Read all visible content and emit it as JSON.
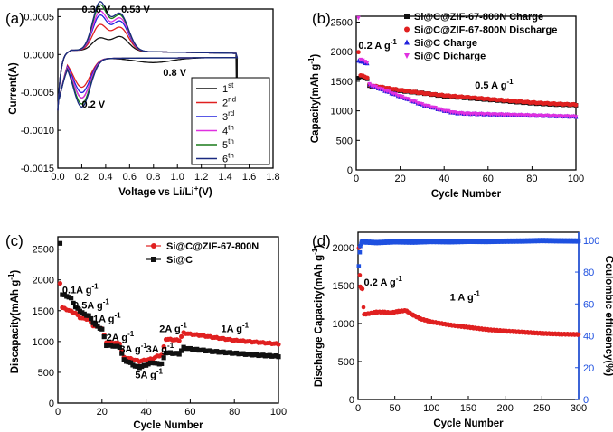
{
  "figure": {
    "panels": [
      "(a)",
      "(b)",
      "(c)",
      "(d)"
    ]
  },
  "chart_data": [
    {
      "id": "a",
      "type": "line",
      "panel_label": "(a)",
      "xlabel": "Voltage vs Li/Li",
      "xlabel_sup": "+",
      "xlabel_suffix": "(V)",
      "ylabel": "Current(A)",
      "xlim": [
        0,
        1.8
      ],
      "ylim": [
        -0.0015,
        0.0006
      ],
      "x_ticks": [
        "0.0",
        "0.2",
        "0.4",
        "0.6",
        "0.8",
        "1.0",
        "1.2",
        "1.4",
        "1.6",
        "1.8"
      ],
      "x_tick_values": [
        0,
        0.2,
        0.4,
        0.6,
        0.8,
        1.0,
        1.2,
        1.4,
        1.6,
        1.8
      ],
      "y_ticks": [
        "0.0005",
        "0.0000",
        "-0.0005",
        "-0.0010",
        "-0.0015"
      ],
      "y_tick_values": [
        0.0005,
        0.0,
        -0.0005,
        -0.001,
        -0.0015
      ],
      "annotations": [
        {
          "text": "0.36 V",
          "x": 0.2,
          "y": 0.00055
        },
        {
          "text": "0.53 V",
          "x": 0.53,
          "y": 0.00055
        },
        {
          "text": "0.8 V",
          "x": 0.88,
          "y": -0.00028
        },
        {
          "text": "0.2 V",
          "x": 0.2,
          "y": -0.0007
        }
      ],
      "legend": [
        {
          "main": "1",
          "sup": "st"
        },
        {
          "main": "2",
          "sup": "nd"
        },
        {
          "main": "3",
          "sup": "rd"
        },
        {
          "main": "4",
          "sup": "th"
        },
        {
          "main": "5",
          "sup": "th"
        },
        {
          "main": "6",
          "sup": "th"
        }
      ],
      "series": [
        {
          "name": "1st",
          "color": "#111111",
          "p1": 0.00016,
          "p2": 0.00019,
          "r": -0.00062
        },
        {
          "name": "2nd",
          "color": "#e02020",
          "p1": 0.00033,
          "p2": 0.00031,
          "r": -0.00048
        },
        {
          "name": "3rd",
          "color": "#2222dd",
          "p1": 0.00045,
          "p2": 0.00039,
          "r": -0.00055
        },
        {
          "name": "4th",
          "color": "#e030e0",
          "p1": 0.0005,
          "p2": 0.00043,
          "r": -0.00062
        },
        {
          "name": "5th",
          "color": "#1a7a1a",
          "p1": 0.00058,
          "p2": 0.00047,
          "r": -0.0007
        },
        {
          "name": "6th",
          "color": "#1a2a80",
          "p1": 0.00062,
          "p2": 0.00049,
          "r": -0.00074
        }
      ]
    },
    {
      "id": "b",
      "type": "scatter",
      "panel_label": "(b)",
      "xlabel": "Cycle Number",
      "ylabel": "Capacity(mAh g",
      "ylabel_sup": "-1",
      "ylabel_suffix": ")",
      "xlim": [
        0,
        100
      ],
      "ylim": [
        0,
        2600
      ],
      "x_ticks": [
        "0",
        "20",
        "40",
        "60",
        "80",
        "100"
      ],
      "x_tick_values": [
        0,
        20,
        40,
        60,
        80,
        100
      ],
      "y_ticks": [
        "0",
        "500",
        "1000",
        "1500",
        "2000",
        "2500"
      ],
      "y_tick_values": [
        0,
        500,
        1000,
        1500,
        2000,
        2500
      ],
      "annotations": [
        {
          "text": "0.2 A g",
          "sup": "-1",
          "x": 1,
          "y": 2050
        },
        {
          "text": "0.5 A g",
          "sup": "-1",
          "x": 54,
          "y": 1380
        }
      ],
      "legend": [
        {
          "text": "Si@C@ZIF-67-800N Charge",
          "color": "#111111",
          "marker": "square"
        },
        {
          "text": "Si@C@ZIF-67-800N Discharge",
          "color": "#e02020",
          "marker": "circle"
        },
        {
          "text": "Si@C Charge",
          "color": "#2222dd",
          "marker": "triangle"
        },
        {
          "text": "Si@C Dicharge",
          "color": "#e030e0",
          "marker": "triangle-down"
        }
      ],
      "series": [
        {
          "name": "Si@C@ZIF-67-800N Charge",
          "color": "#111111",
          "marker": "square",
          "points": [
            [
              1,
              1560
            ],
            [
              2,
              1580
            ],
            [
              3,
              1570
            ],
            [
              4,
              1560
            ],
            [
              5,
              1540
            ],
            [
              6,
              1420
            ],
            [
              10,
              1400
            ],
            [
              20,
              1340
            ],
            [
              30,
              1300
            ],
            [
              40,
              1250
            ],
            [
              50,
              1220
            ],
            [
              60,
              1190
            ],
            [
              70,
              1160
            ],
            [
              80,
              1130
            ],
            [
              90,
              1110
            ],
            [
              100,
              1100
            ]
          ]
        },
        {
          "name": "Si@C@ZIF-67-800N Discharge",
          "color": "#e02020",
          "marker": "circle",
          "points": [
            [
              1,
              2000
            ],
            [
              2,
              1600
            ],
            [
              3,
              1590
            ],
            [
              4,
              1580
            ],
            [
              5,
              1560
            ],
            [
              6,
              1430
            ],
            [
              10,
              1410
            ],
            [
              20,
              1350
            ],
            [
              30,
              1300
            ],
            [
              40,
              1260
            ],
            [
              50,
              1230
            ],
            [
              60,
              1200
            ],
            [
              70,
              1170
            ],
            [
              80,
              1140
            ],
            [
              90,
              1120
            ],
            [
              100,
              1105
            ]
          ]
        },
        {
          "name": "Si@C Charge",
          "color": "#2222dd",
          "marker": "triangle",
          "points": [
            [
              1,
              1850
            ],
            [
              2,
              1830
            ],
            [
              3,
              1820
            ],
            [
              4,
              1810
            ],
            [
              5,
              1800
            ],
            [
              6,
              1440
            ],
            [
              10,
              1380
            ],
            [
              20,
              1240
            ],
            [
              30,
              1100
            ],
            [
              40,
              1000
            ],
            [
              45,
              960
            ],
            [
              50,
              950
            ],
            [
              60,
              940
            ],
            [
              70,
              930
            ],
            [
              80,
              920
            ],
            [
              90,
              910
            ],
            [
              100,
              900
            ]
          ]
        },
        {
          "name": "Si@C Dicharge",
          "color": "#e030e0",
          "marker": "triangle-down",
          "points": [
            [
              1,
              2580
            ],
            [
              2,
              1870
            ],
            [
              3,
              1850
            ],
            [
              4,
              1840
            ],
            [
              5,
              1820
            ],
            [
              6,
              1450
            ],
            [
              10,
              1390
            ],
            [
              20,
              1250
            ],
            [
              30,
              1110
            ],
            [
              40,
              1010
            ],
            [
              45,
              970
            ],
            [
              50,
              955
            ],
            [
              60,
              945
            ],
            [
              70,
              935
            ],
            [
              80,
              925
            ],
            [
              90,
              915
            ],
            [
              100,
              905
            ]
          ]
        }
      ]
    },
    {
      "id": "c",
      "type": "scatter",
      "panel_label": "(c)",
      "xlabel": "Cycle Number",
      "ylabel": "Discapacity(mAh g",
      "ylabel_sup": "-1",
      "ylabel_suffix": ")",
      "xlim": [
        0,
        100
      ],
      "ylim": [
        0,
        2700
      ],
      "x_ticks": [
        "0",
        "20",
        "40",
        "60",
        "80",
        "100"
      ],
      "x_tick_values": [
        0,
        20,
        40,
        60,
        80,
        100
      ],
      "y_ticks": [
        "0",
        "500",
        "1000",
        "1500",
        "2000",
        "2500"
      ],
      "y_tick_values": [
        0,
        500,
        1000,
        1500,
        2000,
        2500
      ],
      "annotations": [
        {
          "text": "0.1A g",
          "sup": "-1",
          "x": 2,
          "y": 1780
        },
        {
          "text": "0.5A g",
          "sup": "-1",
          "x": 7,
          "y": 1530
        },
        {
          "text": "1A g",
          "sup": "-1",
          "x": 16,
          "y": 1310
        },
        {
          "text": "2A g",
          "sup": "-1",
          "x": 22,
          "y": 1010
        },
        {
          "text": "3A g",
          "sup": "-1",
          "x": 28,
          "y": 820
        },
        {
          "text": "3A g",
          "sup": "-1",
          "x": 40,
          "y": 820
        },
        {
          "text": "5A g",
          "sup": "-1",
          "x": 35,
          "y": 400
        },
        {
          "text": "2A g",
          "sup": "-1",
          "x": 46,
          "y": 1150
        },
        {
          "text": "1A g",
          "sup": "-1",
          "x": 74,
          "y": 1150
        }
      ],
      "legend": [
        {
          "text": "Si@C@ZIF-67-800N",
          "color": "#e02020",
          "marker": "circle"
        },
        {
          "text": "Si@C",
          "color": "#111111",
          "marker": "square"
        }
      ],
      "series": [
        {
          "name": "Si@C@ZIF-67-800N",
          "color": "#e02020",
          "marker": "circle",
          "points": [
            [
              1,
              1950
            ],
            [
              2,
              1550
            ],
            [
              4,
              1520
            ],
            [
              6,
              1490
            ],
            [
              8,
              1460
            ],
            [
              10,
              1390
            ],
            [
              12,
              1370
            ],
            [
              14,
              1360
            ],
            [
              16,
              1260
            ],
            [
              18,
              1240
            ],
            [
              20,
              1210
            ],
            [
              22,
              990
            ],
            [
              25,
              980
            ],
            [
              28,
              970
            ],
            [
              30,
              740
            ],
            [
              33,
              720
            ],
            [
              35,
              700
            ],
            [
              37,
              680
            ],
            [
              40,
              700
            ],
            [
              43,
              720
            ],
            [
              45,
              760
            ],
            [
              47,
              780
            ],
            [
              49,
              1040
            ],
            [
              52,
              1030
            ],
            [
              55,
              1020
            ],
            [
              57,
              1140
            ],
            [
              60,
              1120
            ],
            [
              65,
              1100
            ],
            [
              70,
              1070
            ],
            [
              80,
              1020
            ],
            [
              90,
              990
            ],
            [
              100,
              960
            ]
          ]
        },
        {
          "name": "Si@C",
          "color": "#111111",
          "marker": "square",
          "points": [
            [
              1,
              2600
            ],
            [
              2,
              1760
            ],
            [
              4,
              1740
            ],
            [
              6,
              1700
            ],
            [
              8,
              1560
            ],
            [
              10,
              1500
            ],
            [
              12,
              1440
            ],
            [
              14,
              1420
            ],
            [
              16,
              1310
            ],
            [
              18,
              1240
            ],
            [
              20,
              1200
            ],
            [
              22,
              940
            ],
            [
              25,
              930
            ],
            [
              28,
              910
            ],
            [
              30,
              700
            ],
            [
              33,
              650
            ],
            [
              35,
              600
            ],
            [
              37,
              580
            ],
            [
              40,
              620
            ],
            [
              43,
              660
            ],
            [
              45,
              640
            ],
            [
              47,
              640
            ],
            [
              49,
              820
            ],
            [
              52,
              810
            ],
            [
              55,
              800
            ],
            [
              57,
              900
            ],
            [
              60,
              880
            ],
            [
              70,
              840
            ],
            [
              80,
              810
            ],
            [
              90,
              780
            ],
            [
              100,
              760
            ]
          ]
        }
      ]
    },
    {
      "id": "d",
      "type": "scatter",
      "panel_label": "(d)",
      "xlabel": "Cycle Number",
      "ylabel": "Discharge Capacity(mAh g",
      "ylabel_sup": "-1",
      "ylabel_suffix": ")",
      "ylabel_right": "Coulombic efficiency(%)",
      "xlim": [
        0,
        300
      ],
      "ylim": [
        0,
        2200
      ],
      "ylim_right": [
        0,
        105
      ],
      "x_ticks": [
        "0",
        "50",
        "100",
        "150",
        "200",
        "250",
        "300"
      ],
      "x_tick_values": [
        0,
        50,
        100,
        150,
        200,
        250,
        300
      ],
      "y_ticks": [
        "0",
        "500",
        "1000",
        "1500",
        "2000"
      ],
      "y_tick_values": [
        0,
        500,
        1000,
        1500,
        2000
      ],
      "y_ticks_right": [
        "0",
        "20",
        "40",
        "60",
        "80",
        "100"
      ],
      "y_tick_values_right": [
        0,
        20,
        40,
        60,
        80,
        100
      ],
      "annotations": [
        {
          "text": "0.2 A g",
          "sup": "-1",
          "x": 8,
          "y": 1500
        },
        {
          "text": "1 A g",
          "sup": "-1",
          "x": 125,
          "y": 1300
        }
      ],
      "series": [
        {
          "name": "Discharge capacity",
          "color": "#e02020",
          "marker": "circle",
          "axis": "left",
          "points": [
            [
              1,
              2000
            ],
            [
              3,
              1480
            ],
            [
              6,
              1450
            ],
            [
              8,
              1120
            ],
            [
              15,
              1130
            ],
            [
              25,
              1150
            ],
            [
              35,
              1150
            ],
            [
              45,
              1140
            ],
            [
              55,
              1160
            ],
            [
              65,
              1170
            ],
            [
              75,
              1110
            ],
            [
              85,
              1060
            ],
            [
              100,
              1020
            ],
            [
              125,
              980
            ],
            [
              150,
              950
            ],
            [
              175,
              920
            ],
            [
              200,
              900
            ],
            [
              225,
              885
            ],
            [
              250,
              870
            ],
            [
              275,
              860
            ],
            [
              300,
              855
            ]
          ]
        },
        {
          "name": "Coulombic efficiency",
          "color": "#1e50e0",
          "marker": "square",
          "axis": "right",
          "points": [
            [
              1,
              84
            ],
            [
              3,
              96
            ],
            [
              5,
              99
            ],
            [
              25,
              98.5
            ],
            [
              50,
              99
            ],
            [
              75,
              98.8
            ],
            [
              100,
              99.2
            ],
            [
              125,
              99
            ],
            [
              150,
              99.3
            ],
            [
              175,
              99.2
            ],
            [
              200,
              99.4
            ],
            [
              225,
              99.5
            ],
            [
              250,
              99.8
            ],
            [
              275,
              99.6
            ],
            [
              300,
              99.5
            ]
          ]
        }
      ]
    }
  ]
}
